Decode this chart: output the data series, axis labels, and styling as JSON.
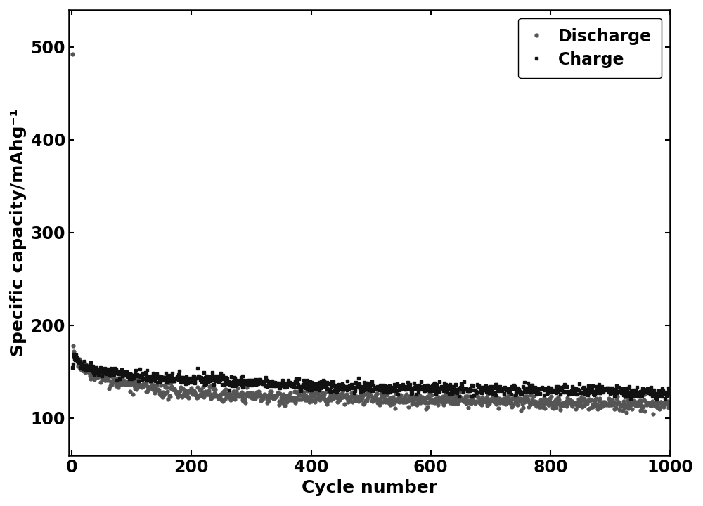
{
  "title": "",
  "xlabel": "Cycle number",
  "ylabel": "Specific capacity/mAhg⁻¹",
  "xlim": [
    -5,
    1000
  ],
  "ylim": [
    60,
    540
  ],
  "yticks": [
    100,
    200,
    300,
    400,
    500
  ],
  "xticks": [
    0,
    200,
    400,
    600,
    800,
    1000
  ],
  "charge_color": "#111111",
  "discharge_color": "#555555",
  "charge_marker": "s",
  "discharge_marker": "o",
  "marker_size": 3.5,
  "legend_loc": "upper right",
  "legend_labels": [
    "Charge",
    "Discharge"
  ],
  "figsize": [
    10.0,
    7.2
  ],
  "dpi": 100,
  "seed": 42,
  "n_cycles": 1000,
  "font_size": 18,
  "tick_font_size": 17,
  "legend_font_size": 17,
  "label_font_size": 18
}
